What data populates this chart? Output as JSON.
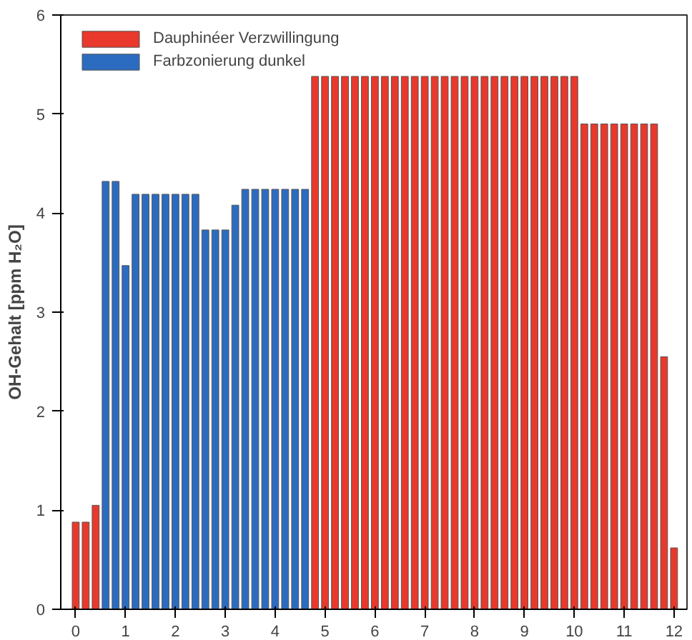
{
  "chart_data": {
    "type": "bar",
    "ylabel": "OH-Gehalt [ppm H₂O]",
    "x": [
      0.0,
      0.2,
      0.4,
      0.6,
      0.8,
      1.0,
      1.2,
      1.4,
      1.6,
      1.8,
      2.0,
      2.2,
      2.4,
      2.6,
      2.8,
      3.0,
      3.2,
      3.4,
      3.6,
      3.8,
      4.0,
      4.2,
      4.4,
      4.6,
      4.8,
      5.0,
      5.2,
      5.4,
      5.6,
      5.8,
      6.0,
      6.2,
      6.4,
      6.6,
      6.8,
      7.0,
      7.2,
      7.4,
      7.6,
      7.8,
      8.0,
      8.2,
      8.4,
      8.6,
      8.8,
      9.0,
      9.2,
      9.4,
      9.6,
      9.8,
      10.0,
      10.2,
      10.4,
      10.6,
      10.8,
      11.0,
      11.2,
      11.4,
      11.6,
      11.8,
      12.0
    ],
    "series": [
      {
        "name": "Dauphinéer Verzwillingung",
        "color": "#e8392c",
        "values": [
          0.88,
          0.88,
          1.05,
          null,
          null,
          null,
          null,
          null,
          null,
          null,
          null,
          null,
          null,
          null,
          null,
          null,
          null,
          null,
          null,
          null,
          null,
          null,
          null,
          null,
          5.38,
          5.38,
          5.38,
          5.38,
          5.38,
          5.38,
          5.38,
          5.38,
          5.38,
          5.38,
          5.38,
          5.38,
          5.38,
          5.38,
          5.38,
          5.38,
          5.38,
          5.38,
          5.38,
          5.38,
          5.38,
          5.38,
          5.38,
          5.38,
          5.38,
          5.38,
          5.38,
          4.9,
          4.9,
          4.9,
          4.9,
          4.9,
          4.9,
          4.9,
          4.9,
          2.55,
          0.62
        ]
      },
      {
        "name": "Farbzonierung dunkel",
        "color": "#2c6cc0",
        "values": [
          null,
          null,
          null,
          4.32,
          4.32,
          3.47,
          4.19,
          4.19,
          4.19,
          4.19,
          4.19,
          4.19,
          4.19,
          3.83,
          3.83,
          3.83,
          4.08,
          4.24,
          4.24,
          4.24,
          4.24,
          4.24,
          4.24,
          4.24,
          null,
          null,
          null,
          null,
          null,
          null,
          null,
          null,
          null,
          null,
          null,
          null,
          null,
          null,
          null,
          null,
          null,
          null,
          null,
          null,
          null,
          null,
          null,
          null,
          null,
          null,
          null,
          null,
          null,
          null,
          null,
          null,
          null,
          null,
          null,
          null,
          null
        ]
      }
    ],
    "xlim": [
      -0.3,
      12.26
    ],
    "xticks": [
      0,
      1,
      2,
      3,
      4,
      5,
      6,
      7,
      8,
      9,
      10,
      11,
      12
    ],
    "ylim": [
      0,
      6
    ],
    "yticks": [
      0,
      1,
      2,
      3,
      4,
      5,
      6
    ],
    "grid": false,
    "legend": "top left"
  }
}
